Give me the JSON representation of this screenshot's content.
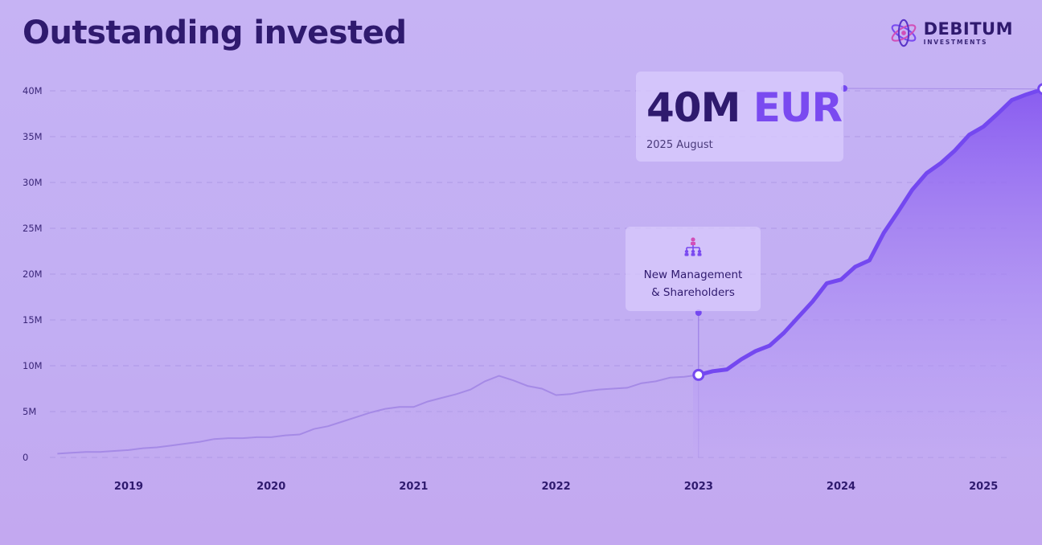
{
  "title": "Outstanding invested",
  "logo": {
    "brand": "DEBITUM",
    "sub": "INVESTMENTS",
    "icon": "atom-icon"
  },
  "callout_total": {
    "value": "40M",
    "currency": "EUR",
    "date": "2025 August"
  },
  "callout_event": {
    "icon": "org-chart-icon",
    "line1": "New Management",
    "line2": "& Shareholders"
  },
  "colors": {
    "dark": "#2f1a6e",
    "accent": "#7a4af0",
    "line": "#7448f0",
    "fill": "#8c63f2"
  },
  "chart_data": {
    "type": "area",
    "title": "Outstanding invested",
    "xlabel": "",
    "ylabel": "",
    "x_tick_labels": [
      "2019",
      "2020",
      "2021",
      "2022",
      "2023",
      "2024",
      "2025"
    ],
    "x_tick_values": [
      2019,
      2020,
      2021,
      2022,
      2023,
      2024,
      2025
    ],
    "y_tick_labels": [
      "0",
      "5M",
      "10M",
      "15M",
      "20M",
      "25M",
      "30M",
      "35M",
      "40M"
    ],
    "y_tick_values": [
      0,
      5,
      10,
      15,
      20,
      25,
      30,
      35,
      40
    ],
    "xlim": [
      2018.5,
      2025.45
    ],
    "ylim": [
      0,
      40
    ],
    "grid": true,
    "unit": "M EUR",
    "highlight_from": 2023.0,
    "annotations": [
      {
        "x": 2023.0,
        "y": 9.0,
        "text": "New Management & Shareholders"
      },
      {
        "x": 2025.42,
        "y": 40.2,
        "text": "40M EUR 2025 August"
      }
    ],
    "series": [
      {
        "x": [
          2018.5,
          2018.6,
          2018.7,
          2018.8,
          2018.9,
          2019.0,
          2019.1,
          2019.2,
          2019.3,
          2019.4,
          2019.5,
          2019.6,
          2019.7,
          2019.8,
          2019.9,
          2020.0,
          2020.1,
          2020.2,
          2020.3,
          2020.4,
          2020.5,
          2020.6,
          2020.7,
          2020.8,
          2020.9,
          2021.0,
          2021.1,
          2021.2,
          2021.3,
          2021.4,
          2021.5,
          2021.6,
          2021.7,
          2021.8,
          2021.9,
          2022.0,
          2022.1,
          2022.2,
          2022.3,
          2022.4,
          2022.5,
          2022.6,
          2022.7,
          2022.8,
          2022.9,
          2023.0,
          2023.1,
          2023.2,
          2023.3,
          2023.4,
          2023.5,
          2023.6,
          2023.7,
          2023.8,
          2023.9,
          2024.0,
          2024.1,
          2024.2,
          2024.3,
          2024.4,
          2024.5,
          2024.6,
          2024.7,
          2024.8,
          2024.9,
          2025.0,
          2025.1,
          2025.2,
          2025.3,
          2025.42
        ],
        "values": [
          0.4,
          0.5,
          0.6,
          0.6,
          0.7,
          0.8,
          1.0,
          1.1,
          1.3,
          1.5,
          1.7,
          2.0,
          2.1,
          2.1,
          2.2,
          2.2,
          2.4,
          2.5,
          3.1,
          3.4,
          3.9,
          4.4,
          4.9,
          5.3,
          5.5,
          5.5,
          6.1,
          6.5,
          6.9,
          7.4,
          8.3,
          8.9,
          8.4,
          7.8,
          7.5,
          6.8,
          6.9,
          7.2,
          7.4,
          7.5,
          7.6,
          8.1,
          8.3,
          8.7,
          8.8,
          9.0,
          9.4,
          9.6,
          10.7,
          11.6,
          12.2,
          13.6,
          15.3,
          17.0,
          19.0,
          19.4,
          20.8,
          21.5,
          24.5,
          26.8,
          29.2,
          31.0,
          32.1,
          33.5,
          35.2,
          36.1,
          37.5,
          39.0,
          39.6,
          40.2
        ]
      }
    ]
  }
}
